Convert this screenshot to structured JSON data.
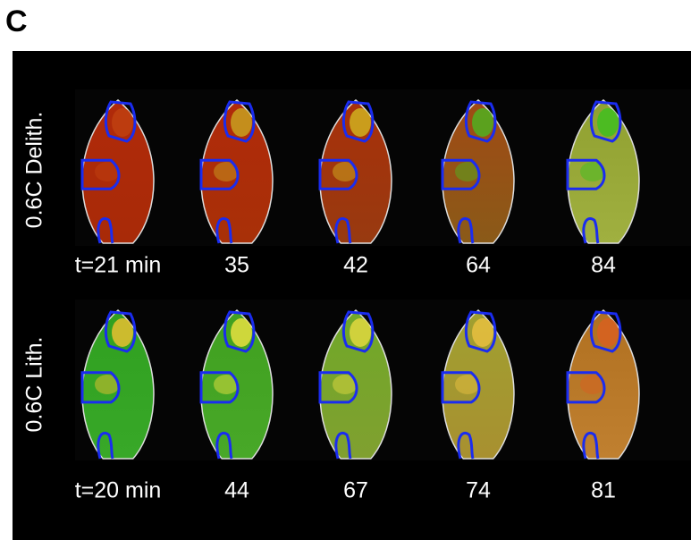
{
  "panel_label": "C",
  "rows": [
    {
      "label": "0.6C Delith.",
      "times": [
        "t=21 min",
        "35",
        "42",
        "64",
        "84"
      ]
    },
    {
      "label": "0.6C Lith.",
      "times": [
        "t=20 min",
        "44",
        "67",
        "74",
        "81"
      ]
    }
  ]
}
